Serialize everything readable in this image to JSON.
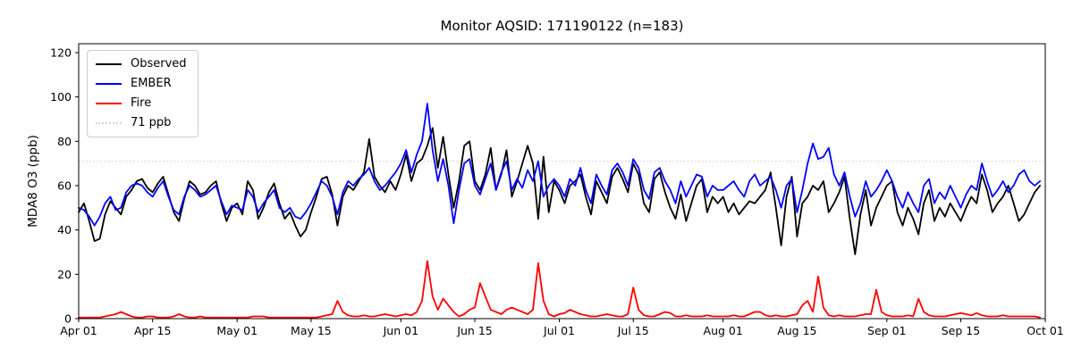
{
  "figure": {
    "title": "Monitor AQSID: 171190122 (n=183)",
    "background": "#ffffff"
  },
  "legend": {
    "items": [
      {
        "label": "Observed",
        "color": "#000000",
        "dash": "solid"
      },
      {
        "label": "EMBER",
        "color": "#0000ff",
        "dash": "solid"
      },
      {
        "label": "Fire",
        "color": "#ff0000",
        "dash": "solid"
      },
      {
        "label": "71 ppb",
        "color": "#d3d3d3",
        "dash": "dotted"
      }
    ]
  },
  "chart_data": {
    "type": "line",
    "title": "Monitor AQSID: 171190122 (n=183)",
    "xlabel": "",
    "ylabel": "MDA8 O3 (ppb)",
    "n_points": 183,
    "x_start": "Apr 01",
    "x_end": "Sep 30",
    "xlim_days": [
      0,
      183
    ],
    "ylim": [
      0,
      124
    ],
    "yticks": [
      0,
      20,
      40,
      60,
      80,
      100,
      120
    ],
    "xticks": [
      {
        "label": "Apr 01",
        "day": 0
      },
      {
        "label": "Apr 15",
        "day": 14
      },
      {
        "label": "May 01",
        "day": 30
      },
      {
        "label": "May 15",
        "day": 44
      },
      {
        "label": "Jun 01",
        "day": 61
      },
      {
        "label": "Jun 15",
        "day": 75
      },
      {
        "label": "Jul 01",
        "day": 91
      },
      {
        "label": "Jul 15",
        "day": 105
      },
      {
        "label": "Aug 01",
        "day": 122
      },
      {
        "label": "Aug 15",
        "day": 136
      },
      {
        "label": "Sep 01",
        "day": 153
      },
      {
        "label": "Sep 15",
        "day": 167
      },
      {
        "label": "Oct 01",
        "day": 183
      }
    ],
    "grid": false,
    "legend_position": "upper left",
    "reference_line": {
      "label": "71 ppb",
      "value": 71,
      "color": "#d3d3d3",
      "style": "dotted"
    },
    "series": [
      {
        "name": "Observed",
        "color": "#000000",
        "values": [
          48,
          52,
          44,
          35,
          36,
          47,
          53,
          50,
          47,
          55,
          58,
          62,
          63,
          59,
          57,
          61,
          64,
          56,
          48,
          44,
          54,
          62,
          60,
          56,
          57,
          60,
          62,
          52,
          44,
          50,
          52,
          47,
          62,
          58,
          45,
          50,
          57,
          61,
          52,
          45,
          48,
          42,
          37,
          40,
          48,
          55,
          63,
          64,
          56,
          42,
          55,
          60,
          58,
          62,
          66,
          81,
          64,
          60,
          57,
          62,
          58,
          65,
          74,
          62,
          70,
          72,
          78,
          86,
          68,
          82,
          65,
          50,
          62,
          78,
          80,
          62,
          58,
          65,
          77,
          58,
          65,
          76,
          55,
          62,
          70,
          78,
          70,
          45,
          73,
          48,
          62,
          58,
          52,
          60,
          62,
          65,
          55,
          47,
          62,
          57,
          52,
          64,
          68,
          63,
          57,
          70,
          65,
          52,
          48,
          63,
          66,
          57,
          50,
          45,
          56,
          44,
          52,
          60,
          63,
          48,
          55,
          52,
          55,
          48,
          52,
          47,
          50,
          53,
          52,
          55,
          58,
          66,
          50,
          33,
          55,
          64,
          37,
          52,
          55,
          60,
          58,
          62,
          48,
          52,
          57,
          64,
          45,
          29,
          47,
          58,
          42,
          50,
          55,
          60,
          62,
          48,
          42,
          50,
          45,
          38,
          52,
          58,
          44,
          50,
          46,
          52,
          48,
          44,
          50,
          55,
          52,
          65,
          58,
          48,
          52,
          55,
          60,
          52,
          44,
          47,
          52,
          57,
          60
        ]
      },
      {
        "name": "EMBER",
        "color": "#0000ff",
        "values": [
          50,
          49,
          46,
          42,
          46,
          52,
          55,
          49,
          50,
          57,
          60,
          61,
          60,
          57,
          55,
          59,
          62,
          55,
          49,
          47,
          55,
          60,
          58,
          55,
          56,
          58,
          60,
          53,
          47,
          51,
          50,
          49,
          58,
          55,
          48,
          52,
          55,
          58,
          50,
          48,
          50,
          46,
          45,
          48,
          52,
          57,
          62,
          60,
          55,
          47,
          57,
          62,
          60,
          63,
          65,
          68,
          62,
          58,
          60,
          63,
          66,
          70,
          76,
          66,
          74,
          80,
          97,
          76,
          62,
          72,
          60,
          43,
          58,
          70,
          72,
          60,
          56,
          63,
          70,
          58,
          66,
          71,
          58,
          63,
          59,
          67,
          62,
          71,
          55,
          60,
          63,
          60,
          55,
          63,
          60,
          68,
          58,
          52,
          65,
          60,
          56,
          67,
          70,
          66,
          60,
          72,
          68,
          58,
          54,
          66,
          68,
          62,
          58,
          52,
          62,
          55,
          60,
          65,
          64,
          55,
          60,
          58,
          58,
          60,
          62,
          58,
          55,
          62,
          65,
          60,
          62,
          64,
          58,
          50,
          60,
          63,
          48,
          58,
          70,
          79,
          72,
          73,
          77,
          65,
          60,
          66,
          55,
          46,
          52,
          62,
          55,
          58,
          62,
          67,
          62,
          55,
          50,
          57,
          52,
          48,
          60,
          63,
          52,
          57,
          54,
          60,
          55,
          50,
          56,
          60,
          58,
          70,
          62,
          55,
          58,
          62,
          57,
          60,
          65,
          67,
          62,
          60,
          62
        ]
      },
      {
        "name": "Fire",
        "color": "#ff0000",
        "values": [
          0.5,
          0.5,
          0.5,
          0.5,
          0.5,
          1,
          1.5,
          2,
          3,
          2,
          1,
          0.5,
          0.5,
          1,
          1,
          0.5,
          0.5,
          0.5,
          1,
          2,
          1,
          0.5,
          0.5,
          1,
          0.5,
          0.5,
          0.5,
          0.5,
          0.5,
          0.5,
          0.5,
          0.5,
          0.5,
          1,
          1,
          1,
          0.5,
          0.5,
          0.5,
          0.5,
          0.5,
          0.5,
          0.5,
          0.5,
          0.5,
          0.5,
          1,
          1.5,
          2,
          8,
          3,
          1.5,
          1,
          1,
          1.5,
          1,
          1,
          1.5,
          2,
          1.5,
          1,
          1.5,
          2,
          1.5,
          3,
          8,
          26,
          10,
          4,
          9,
          6,
          3,
          1,
          2,
          4,
          5,
          16,
          10,
          4,
          3,
          2,
          4,
          5,
          4,
          3,
          2,
          4,
          25,
          8,
          2,
          1,
          2,
          2.5,
          4,
          3,
          2,
          1.5,
          1,
          1,
          1.5,
          2,
          1.5,
          1,
          1,
          2,
          14,
          4,
          1.5,
          1,
          1,
          2,
          3,
          2.5,
          1,
          1,
          1.5,
          1,
          1,
          1,
          1.5,
          1,
          1,
          1,
          1,
          1.5,
          1,
          1,
          2,
          3,
          3,
          1.5,
          1,
          1.5,
          1,
          1,
          1.5,
          2,
          6,
          8,
          3,
          19,
          5,
          1.5,
          1,
          1.5,
          1,
          1,
          1,
          1.5,
          2,
          2,
          13,
          3,
          1.5,
          1,
          1,
          1,
          1.5,
          1,
          9,
          3,
          1.5,
          1,
          1,
          1,
          1.5,
          2,
          2.5,
          2,
          1.5,
          2.5,
          1.5,
          1,
          1,
          1,
          1.5,
          1,
          1,
          1,
          1,
          1,
          1,
          0.5
        ]
      }
    ]
  }
}
